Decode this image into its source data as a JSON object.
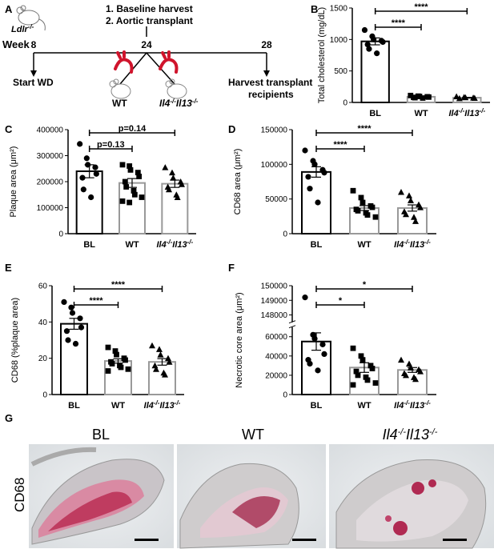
{
  "panelA": {
    "letter": "A",
    "mouse_label": "Ldlr",
    "mouse_sup": "-/-",
    "week_label": "Week",
    "weeks": [
      "8",
      "24",
      "28"
    ],
    "steps": [
      "1. Baseline harvest",
      "2. Aortic transplant"
    ],
    "start": "Start WD",
    "harvest_line1": "Harvest transplant",
    "harvest_line2": "recipients",
    "wt": "WT",
    "ko": "Il4",
    "ko_sup1": "-/-",
    "ko_mid": "Il13",
    "ko_sup2": "-/-"
  },
  "panelG": {
    "letter": "G",
    "row_label": "CD68",
    "titles": [
      "BL",
      "WT",
      "Il4",
      "-/-",
      "Il13",
      "-/-"
    ]
  },
  "chart_data": [
    {
      "id": "B",
      "letter": "B",
      "type": "bar",
      "categories": [
        "BL",
        "WT",
        "Il4-/-Il13-/-"
      ],
      "values": [
        970,
        90,
        75
      ],
      "errors": [
        55,
        8,
        6
      ],
      "points": [
        [
          1150,
          1050,
          1000,
          980,
          960,
          920,
          850,
          780
        ],
        [
          110,
          100,
          95,
          90,
          85,
          80,
          75,
          70
        ],
        [
          95,
          85,
          80,
          75,
          70,
          65
        ]
      ],
      "markers": [
        "circle",
        "square",
        "triangle"
      ],
      "ylabel": "Total cholesterol (mg/dL)",
      "ylim": [
        0,
        1500
      ],
      "yticks": [
        0,
        500,
        1000,
        1500
      ],
      "comparisons": [
        {
          "from": 0,
          "to": 1,
          "label": "****"
        },
        {
          "from": 0,
          "to": 2,
          "label": "****"
        }
      ]
    },
    {
      "id": "C",
      "letter": "C",
      "type": "bar",
      "categories": [
        "BL",
        "WT",
        "Il4-/-Il13-/-"
      ],
      "values": [
        240000,
        195000,
        192000
      ],
      "errors": [
        25000,
        17000,
        14000
      ],
      "points": [
        [
          345000,
          290000,
          265000,
          255000,
          230000,
          215000,
          170000,
          140000
        ],
        [
          265000,
          260000,
          245000,
          235000,
          220000,
          200000,
          180000,
          165000,
          150000,
          140000,
          125000,
          120000
        ],
        [
          255000,
          235000,
          215000,
          200000,
          190000,
          180000,
          170000,
          150000,
          140000
        ]
      ],
      "markers": [
        "circle",
        "square",
        "triangle"
      ],
      "ylabel": "Plaque area (μm²)",
      "ylim": [
        0,
        400000
      ],
      "yticks": [
        0,
        100000,
        200000,
        300000,
        400000
      ],
      "comparisons": [
        {
          "from": 0,
          "to": 1,
          "label": "p=0.13"
        },
        {
          "from": 0,
          "to": 2,
          "label": "p=0.14"
        }
      ]
    },
    {
      "id": "D",
      "letter": "D",
      "type": "bar",
      "categories": [
        "BL",
        "WT",
        "Il4-/-Il13-/-"
      ],
      "values": [
        89000,
        37000,
        37000
      ],
      "errors": [
        7500,
        3500,
        4500
      ],
      "points": [
        [
          120000,
          105000,
          100000,
          92000,
          88000,
          82000,
          65000,
          45000
        ],
        [
          62000,
          52000,
          45000,
          40000,
          38000,
          35000,
          33000,
          30000,
          27000,
          24000
        ],
        [
          60000,
          55000,
          48000,
          42000,
          38000,
          32000,
          28000,
          24000,
          18000
        ]
      ],
      "markers": [
        "circle",
        "square",
        "triangle"
      ],
      "ylabel": "CD68 area (μm²)",
      "ylim": [
        0,
        150000
      ],
      "yticks": [
        0,
        50000,
        100000,
        150000
      ],
      "comparisons": [
        {
          "from": 0,
          "to": 1,
          "label": "****"
        },
        {
          "from": 0,
          "to": 2,
          "label": "****"
        }
      ]
    },
    {
      "id": "E",
      "letter": "E",
      "type": "bar",
      "categories": [
        "BL",
        "WT",
        "Il4-/-Il13-/-"
      ],
      "values": [
        39,
        18.5,
        18
      ],
      "errors": [
        3,
        1.2,
        1.8
      ],
      "points": [
        [
          51,
          48,
          45,
          42,
          37,
          35,
          30,
          28
        ],
        [
          26,
          24,
          22,
          20,
          19,
          18,
          17,
          16,
          15,
          14,
          13
        ],
        [
          27,
          25,
          22,
          20,
          18,
          16,
          14,
          12,
          11
        ]
      ],
      "markers": [
        "circle",
        "square",
        "triangle"
      ],
      "ylabel": "CD68 (%plaque area)",
      "ylim": [
        0,
        60
      ],
      "yticks": [
        0,
        20,
        40,
        60
      ],
      "comparisons": [
        {
          "from": 0,
          "to": 1,
          "label": "****"
        },
        {
          "from": 0,
          "to": 2,
          "label": "****"
        }
      ]
    },
    {
      "id": "F",
      "letter": "F",
      "type": "bar",
      "categories": [
        "BL",
        "WT",
        "Il4-/-Il13-/-"
      ],
      "values": [
        55000,
        28000,
        25500
      ],
      "errors": [
        9000,
        5000,
        2500
      ],
      "points": [
        [
          149200,
          62000,
          58000,
          52000,
          42000,
          36000,
          32000,
          25000
        ],
        [
          48000,
          40000,
          36000,
          30000,
          27000,
          24000,
          20000,
          18000,
          15000,
          12000,
          10000
        ],
        [
          36000,
          32000,
          28000,
          26000,
          24000,
          22000,
          20000,
          18000,
          16000
        ]
      ],
      "markers": [
        "circle",
        "square",
        "triangle"
      ],
      "ylabel": "Necrotic core area (μm²)",
      "ylim": [
        0,
        150000
      ],
      "yticks": [
        0,
        20000,
        40000,
        60000,
        148000,
        149000,
        150000
      ],
      "axis_break": [
        70000,
        147500
      ],
      "comparisons": [
        {
          "from": 0,
          "to": 1,
          "label": "*"
        },
        {
          "from": 0,
          "to": 2,
          "label": "*"
        }
      ]
    }
  ]
}
